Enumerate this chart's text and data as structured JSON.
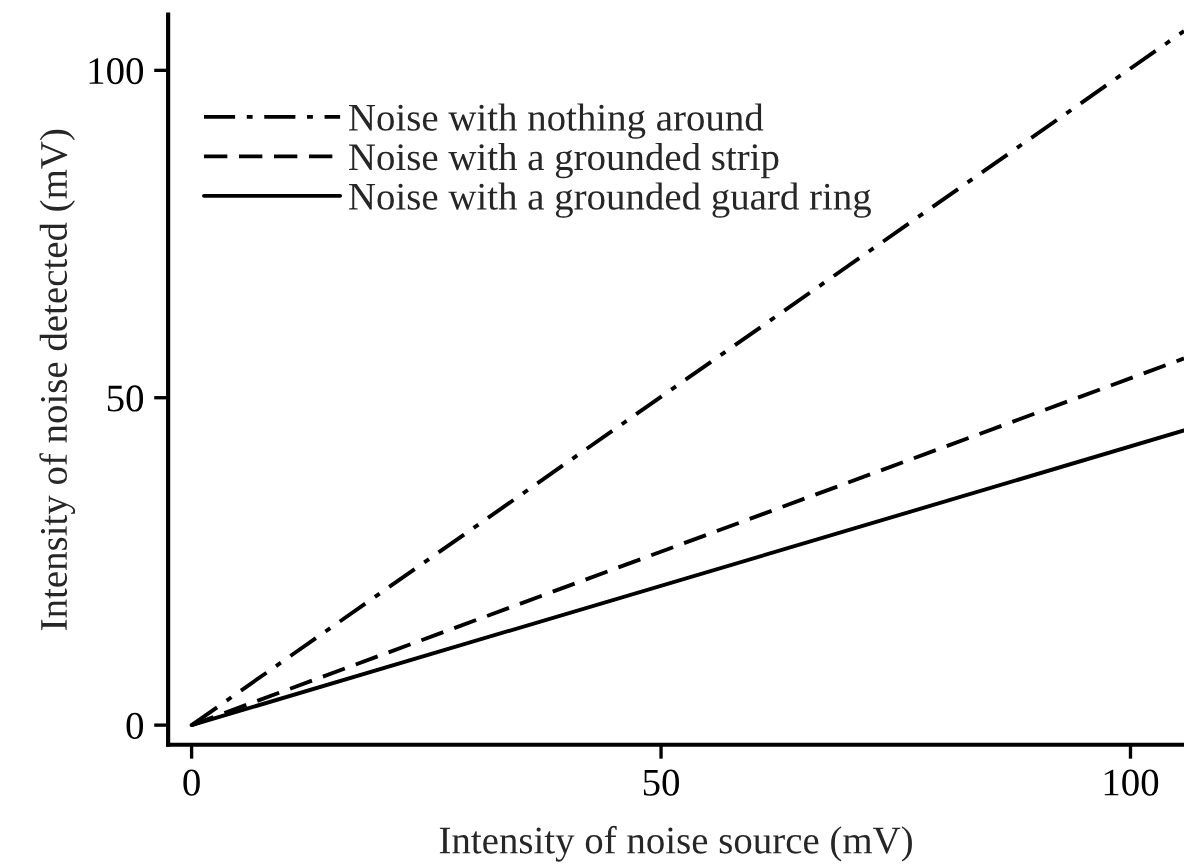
{
  "chart_data": {
    "type": "line",
    "xlabel": "Intensity of noise source (mV)",
    "ylabel": "Intensity of noise detected (mV)",
    "x": [
      0,
      105.7
    ],
    "series": [
      {
        "name": "Noise with nothing around",
        "color": "#000000",
        "values": [
          0,
          106
        ],
        "line_style": "dashdot"
      },
      {
        "name": "Noise with a grounded strip",
        "color": "#000000",
        "values": [
          0,
          56
        ],
        "line_style": "dashed"
      },
      {
        "name": "Noise with a grounded guard ring",
        "color": "#000000",
        "values": [
          0,
          45
        ],
        "line_style": "solid"
      }
    ],
    "xlim": [
      -2.5,
      105.7
    ],
    "ylim": [
      -3,
      108.5
    ],
    "xticks": [
      0,
      50,
      100
    ],
    "yticks": [
      0,
      50,
      100
    ],
    "grid": false,
    "legend": "top left",
    "marker": "none"
  }
}
